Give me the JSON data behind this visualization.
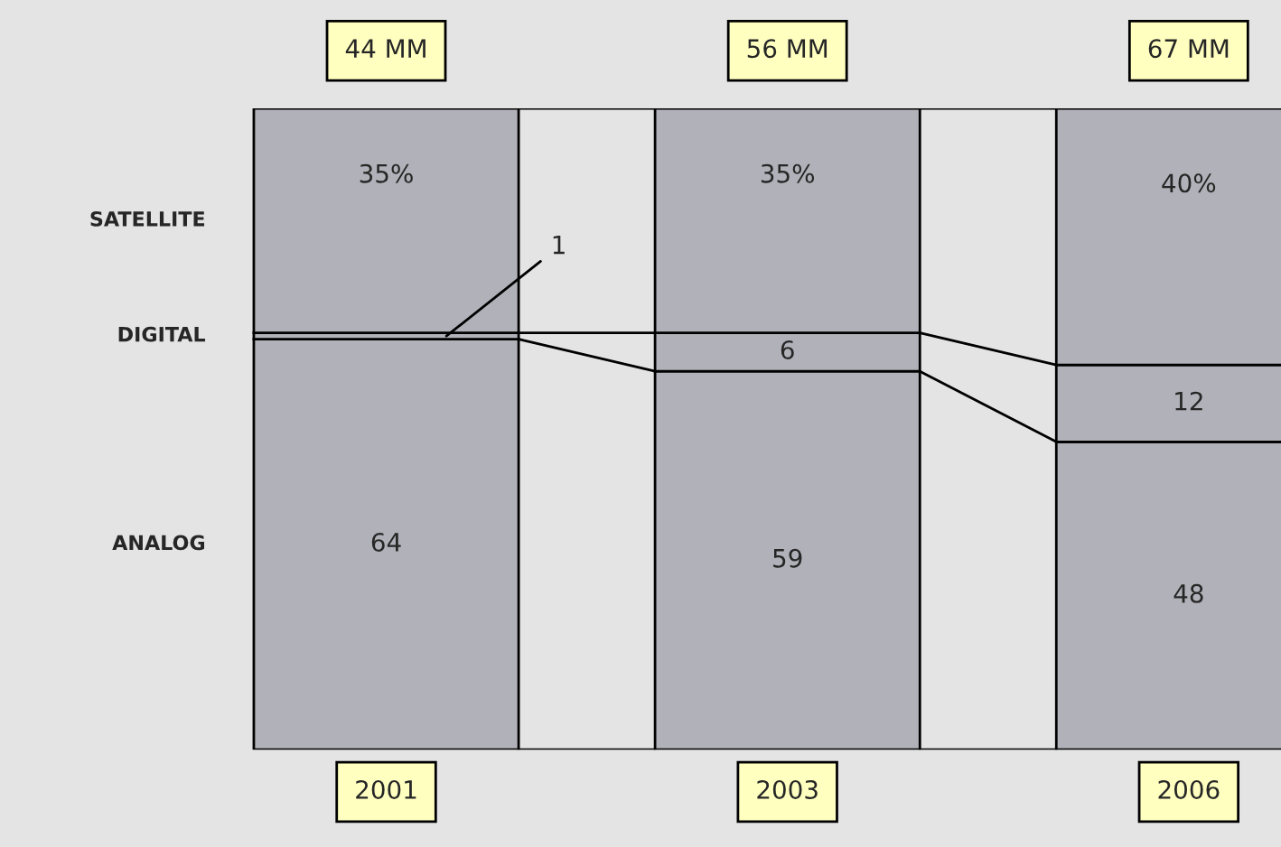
{
  "chart_data": {
    "type": "bar",
    "stacked": true,
    "legend": false,
    "categories": [
      "2001",
      "2003",
      "2006"
    ],
    "series": [
      {
        "name": "ANALOG",
        "color": "#b1b1b9",
        "values": [
          64,
          59,
          48
        ],
        "value_labels": [
          "64",
          "59",
          "48"
        ]
      },
      {
        "name": "DIGITAL",
        "color": "#b1b1b9",
        "values": [
          1,
          6,
          12
        ],
        "value_labels": [
          "1",
          "6",
          "12"
        ]
      },
      {
        "name": "SATELLITE",
        "color": "#b1b1b9",
        "values": [
          35,
          35,
          40
        ],
        "value_labels": [
          "35%",
          "35%",
          "40%"
        ]
      }
    ],
    "annotations": [
      "44 MM",
      "56 MM",
      "67 MM"
    ]
  }
}
